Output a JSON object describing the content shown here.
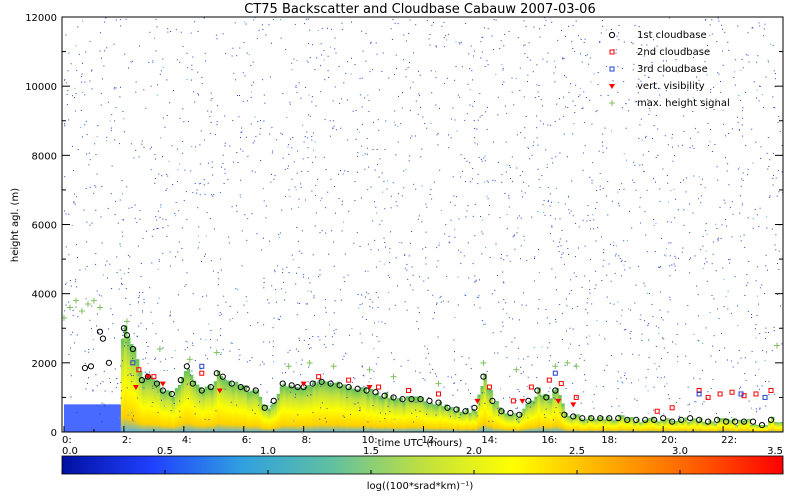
{
  "chart_data": {
    "type": "scatter",
    "title": "CT75 Backscatter and Cloudbase Cabauw 2007-03-06",
    "xlabel": "time UTC (hours)",
    "ylabel": "height agl. (m)",
    "xlim": [
      0,
      24
    ],
    "ylim": [
      0,
      12000
    ],
    "x_ticks": [
      "0:",
      "2:",
      "4:",
      "6:",
      "8:",
      "10:",
      "12:",
      "14:",
      "16:",
      "18:",
      "20:",
      "22:"
    ],
    "x_tick_values": [
      0,
      2,
      4,
      6,
      8,
      10,
      12,
      14,
      16,
      18,
      20,
      22
    ],
    "y_ticks": [
      "0",
      "2000",
      "4000",
      "6000",
      "8000",
      "10000",
      "12000"
    ],
    "y_tick_values": [
      0,
      2000,
      4000,
      6000,
      8000,
      10000,
      12000
    ],
    "legend": {
      "position": "top-right",
      "entries": [
        {
          "label": "1st cloudbase",
          "color": "#000000",
          "marker": "circle"
        },
        {
          "label": "2nd cloudbase",
          "color": "#ff0000",
          "marker": "square"
        },
        {
          "label": "3rd cloudbase",
          "color": "#2040d0",
          "marker": "square"
        },
        {
          "label": "vert. visibility",
          "color": "#ff0000",
          "marker": "triangle"
        },
        {
          "label": "max. height signal",
          "color": "#80c060",
          "marker": "plus"
        }
      ]
    },
    "colorbar": {
      "label": "log((100*srad*km)⁻¹)",
      "range": [
        0.0,
        3.5
      ],
      "ticks": [
        "0.0",
        "0.5",
        "1.0",
        "1.5",
        "2.0",
        "2.5",
        "3.0",
        "3.5"
      ],
      "tick_values": [
        0.0,
        0.5,
        1.0,
        1.5,
        2.0,
        2.5,
        3.0,
        3.5
      ],
      "colors": [
        "#0010a0",
        "#2040ff",
        "#30a0e0",
        "#60c0a0",
        "#c0e040",
        "#ffff00",
        "#ffb000",
        "#ff6000",
        "#ff0000"
      ]
    },
    "series": [
      {
        "name": "1st cloudbase",
        "x": [
          0.7,
          0.9,
          1.2,
          1.3,
          1.5,
          2.0,
          2.1,
          2.3,
          2.6,
          2.8,
          3.1,
          3.3,
          3.6,
          3.9,
          4.1,
          4.3,
          4.6,
          4.9,
          5.1,
          5.3,
          5.6,
          5.9,
          6.1,
          6.4,
          6.7,
          7.0,
          7.3,
          7.6,
          7.8,
          8.0,
          8.3,
          8.6,
          8.9,
          9.2,
          9.5,
          9.8,
          10.1,
          10.4,
          10.7,
          11.0,
          11.3,
          11.6,
          11.9,
          12.2,
          12.5,
          12.8,
          13.1,
          13.4,
          13.7,
          14.0,
          14.3,
          14.6,
          14.9,
          15.2,
          15.5,
          15.8,
          16.1,
          16.4,
          16.7,
          17.0,
          17.3,
          17.6,
          17.9,
          18.2,
          18.5,
          18.8,
          19.1,
          19.4,
          19.7,
          20.0,
          20.3,
          20.6,
          20.9,
          21.2,
          21.5,
          21.8,
          22.1,
          22.4,
          22.7,
          23.0,
          23.3,
          23.6
        ],
        "y": [
          1850,
          1900,
          2900,
          2700,
          2000,
          3000,
          2800,
          2400,
          1500,
          1600,
          1400,
          1200,
          1100,
          1500,
          1900,
          1400,
          1200,
          1300,
          1700,
          1600,
          1400,
          1300,
          1250,
          1200,
          700,
          900,
          1400,
          1350,
          1300,
          1300,
          1400,
          1450,
          1400,
          1350,
          1300,
          1250,
          1200,
          1150,
          1050,
          1000,
          950,
          950,
          950,
          900,
          850,
          700,
          650,
          600,
          700,
          1600,
          900,
          600,
          550,
          500,
          900,
          1200,
          1000,
          1200,
          500,
          450,
          400,
          400,
          400,
          400,
          400,
          350,
          350,
          350,
          350,
          400,
          300,
          350,
          400,
          350,
          300,
          350,
          300,
          300,
          300,
          300,
          200,
          350
        ]
      },
      {
        "name": "2nd cloudbase",
        "x": [
          2.5,
          3.0,
          4.6,
          8.5,
          9.5,
          10.5,
          11.5,
          12.5,
          14.2,
          15.0,
          15.6,
          16.2,
          16.6,
          17.1,
          19.8,
          20.3,
          21.2,
          21.5,
          21.9,
          22.3,
          22.7,
          23.1,
          23.6
        ],
        "y": [
          1800,
          1600,
          1700,
          1600,
          1500,
          1300,
          1200,
          1100,
          1300,
          900,
          1300,
          1500,
          1400,
          1000,
          600,
          700,
          1200,
          1000,
          1100,
          1150,
          1050,
          1100,
          1200
        ]
      },
      {
        "name": "3rd cloudbase",
        "x": [
          2.3,
          4.6,
          16.4,
          21.2,
          22.6,
          23.4
        ],
        "y": [
          2000,
          1900,
          1700,
          1100,
          1100,
          1000
        ]
      },
      {
        "name": "vert. visibility",
        "x": [
          2.4,
          2.8,
          3.3,
          5.2,
          8.0,
          10.2,
          13.8,
          15.3,
          16.5,
          17.0
        ],
        "y": [
          1300,
          1600,
          1400,
          1200,
          1400,
          1300,
          900,
          900,
          900,
          800
        ]
      },
      {
        "name": "max. height signal",
        "x": [
          0.0,
          0.2,
          0.4,
          0.6,
          0.8,
          1.0,
          1.2,
          2.1,
          3.2,
          4.2,
          5.1,
          7.5,
          8.2,
          9.0,
          10.2,
          11.0,
          12.5,
          14.0,
          15.1,
          16.4,
          16.8,
          17.1,
          23.8
        ],
        "y": [
          3300,
          3600,
          3800,
          3500,
          3700,
          3800,
          3600,
          3200,
          2400,
          2100,
          2300,
          1900,
          2000,
          1900,
          1800,
          1600,
          1400,
          2000,
          1800,
          1900,
          2000,
          1900,
          2500
        ]
      }
    ]
  }
}
